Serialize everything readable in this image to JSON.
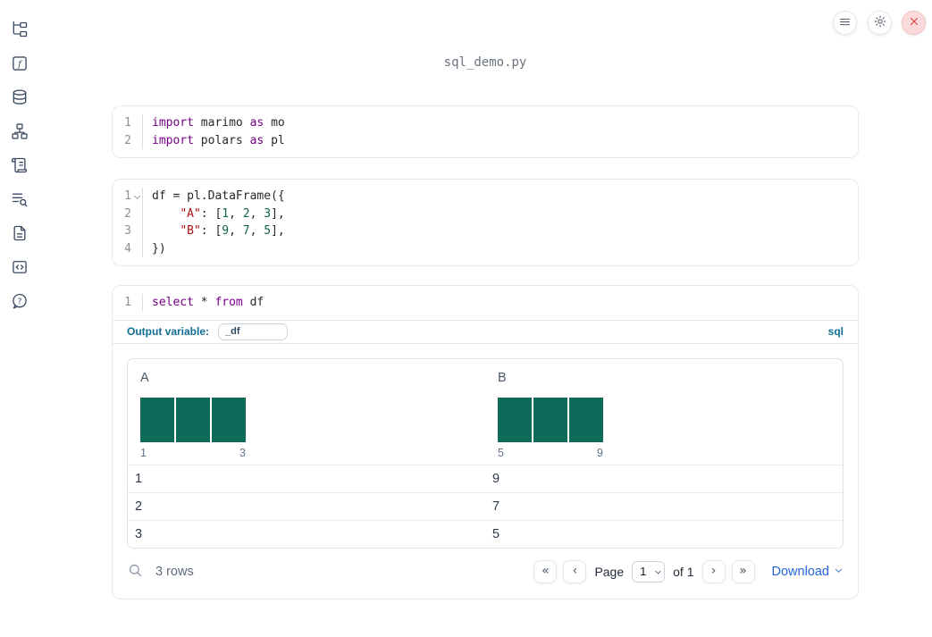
{
  "app": {
    "title": "sql_demo.py"
  },
  "sidebar": {
    "icons": [
      "file-tree",
      "function",
      "database",
      "dependency-graph",
      "script-scroll",
      "list-search",
      "document",
      "code-snippet",
      "help"
    ]
  },
  "topbar": {
    "icons": [
      "menu-icon",
      "gear-icon",
      "close-icon"
    ]
  },
  "cells": [
    {
      "type": "code",
      "lines": [
        {
          "num": "1",
          "tokens": [
            [
              "import",
              "kw"
            ],
            [
              " marimo ",
              "pl"
            ],
            [
              "as",
              "kw"
            ],
            [
              " mo",
              "pl"
            ]
          ]
        },
        {
          "num": "2",
          "tokens": [
            [
              "import",
              "kw"
            ],
            [
              " polars ",
              "pl"
            ],
            [
              "as",
              "kw"
            ],
            [
              " pl",
              "pl"
            ]
          ]
        }
      ]
    },
    {
      "type": "code",
      "lines": [
        {
          "num": "1",
          "fold": true,
          "tokens": [
            [
              "df = pl.DataFrame({",
              "pl"
            ]
          ]
        },
        {
          "num": "2",
          "tokens": [
            [
              "    ",
              "pl"
            ],
            [
              "\"A\"",
              "str"
            ],
            [
              ": [",
              "pl"
            ],
            [
              "1",
              "num"
            ],
            [
              ", ",
              "pl"
            ],
            [
              "2",
              "num"
            ],
            [
              ", ",
              "pl"
            ],
            [
              "3",
              "num"
            ],
            [
              "],",
              "pl"
            ]
          ]
        },
        {
          "num": "3",
          "tokens": [
            [
              "    ",
              "pl"
            ],
            [
              "\"B\"",
              "str"
            ],
            [
              ": [",
              "pl"
            ],
            [
              "9",
              "num"
            ],
            [
              ", ",
              "pl"
            ],
            [
              "7",
              "num"
            ],
            [
              ", ",
              "pl"
            ],
            [
              "5",
              "num"
            ],
            [
              "],",
              "pl"
            ]
          ]
        },
        {
          "num": "4",
          "tokens": [
            [
              "})",
              "pl"
            ]
          ]
        }
      ]
    },
    {
      "type": "sql",
      "lines": [
        {
          "num": "1",
          "tokens": [
            [
              "select",
              "kw"
            ],
            [
              " * ",
              "pl"
            ],
            [
              "from",
              "kw"
            ],
            [
              " df",
              "pl"
            ]
          ]
        }
      ],
      "output_variable_label": "Output variable:",
      "output_variable_value": "_df",
      "language_badge": "sql"
    }
  ],
  "table": {
    "columns": [
      {
        "name": "A",
        "histogram": {
          "bars": [
            1,
            1,
            1
          ],
          "min_label": "1",
          "max_label": "3"
        }
      },
      {
        "name": "B",
        "histogram": {
          "bars": [
            1,
            1,
            1
          ],
          "min_label": "5",
          "max_label": "9"
        }
      }
    ],
    "rows": [
      [
        "1",
        "9"
      ],
      [
        "2",
        "7"
      ],
      [
        "3",
        "5"
      ]
    ],
    "footer": {
      "row_count": "3 rows",
      "page_label": "Page",
      "page_value": "1",
      "of_label": "of 1",
      "download_label": "Download",
      "pager_buttons": [
        "first-page",
        "previous-page",
        "next-page",
        "last-page"
      ]
    }
  },
  "colors": {
    "syntax_keyword": "#770088",
    "syntax_string": "#aa1111",
    "syntax_number": "#116644",
    "histogram_bar": "#0e6b5a",
    "sql_accent": "#0f6e94",
    "link_blue": "#2465d9",
    "close_button_bg": "#fadada",
    "close_button_x": "#dc3b3b",
    "sidebar_icon": "#3b4a63"
  }
}
